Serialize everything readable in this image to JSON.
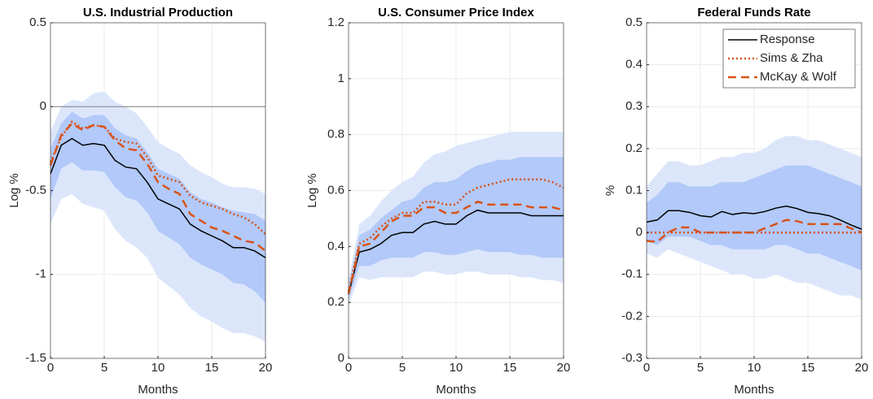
{
  "chart_data": [
    {
      "type": "line",
      "title": "U.S. Industrial Production",
      "xlabel": "Months",
      "ylabel": "Log %",
      "x": [
        0,
        1,
        2,
        3,
        4,
        5,
        6,
        7,
        8,
        9,
        10,
        11,
        12,
        13,
        14,
        15,
        16,
        17,
        18,
        19,
        20
      ],
      "xlim": [
        0,
        20
      ],
      "xticks": [
        0,
        5,
        10,
        15,
        20
      ],
      "ylim": [
        -1.5,
        0.5
      ],
      "yticks": [
        -1.5,
        -1,
        -0.5,
        0,
        0.5
      ],
      "grid": true,
      "zero_line": true,
      "bands": [
        {
          "color": "#dce6fb",
          "upper": [
            -0.15,
            0.0,
            0.04,
            0.03,
            0.08,
            0.09,
            0.03,
            0.0,
            -0.04,
            -0.12,
            -0.21,
            -0.25,
            -0.28,
            -0.35,
            -0.39,
            -0.42,
            -0.46,
            -0.48,
            -0.48,
            -0.49,
            -0.52
          ],
          "lower": [
            -0.7,
            -0.55,
            -0.52,
            -0.58,
            -0.6,
            -0.62,
            -0.73,
            -0.8,
            -0.84,
            -0.9,
            -1.02,
            -1.07,
            -1.12,
            -1.2,
            -1.25,
            -1.28,
            -1.32,
            -1.35,
            -1.35,
            -1.37,
            -1.4
          ]
        },
        {
          "color": "#b2c9f9",
          "upper": [
            -0.25,
            -0.1,
            -0.03,
            -0.07,
            -0.05,
            -0.05,
            -0.13,
            -0.17,
            -0.19,
            -0.27,
            -0.37,
            -0.4,
            -0.43,
            -0.51,
            -0.55,
            -0.57,
            -0.6,
            -0.62,
            -0.63,
            -0.64,
            -0.68
          ],
          "lower": [
            -0.55,
            -0.37,
            -0.33,
            -0.38,
            -0.38,
            -0.39,
            -0.48,
            -0.54,
            -0.56,
            -0.63,
            -0.74,
            -0.78,
            -0.82,
            -0.9,
            -0.94,
            -0.97,
            -1.0,
            -1.05,
            -1.06,
            -1.1,
            -1.17
          ]
        }
      ],
      "series": [
        {
          "name": "Response",
          "color": "#000000",
          "dash": "solid",
          "values": [
            -0.4,
            -0.23,
            -0.19,
            -0.23,
            -0.22,
            -0.23,
            -0.32,
            -0.36,
            -0.37,
            -0.45,
            -0.55,
            -0.58,
            -0.61,
            -0.7,
            -0.74,
            -0.77,
            -0.8,
            -0.84,
            -0.84,
            -0.86,
            -0.9
          ]
        },
        {
          "name": "Sims & Zha",
          "color": "#d95319",
          "dash": "dotted",
          "values": [
            -0.33,
            -0.18,
            -0.09,
            -0.13,
            -0.11,
            -0.12,
            -0.19,
            -0.21,
            -0.22,
            -0.3,
            -0.41,
            -0.43,
            -0.45,
            -0.53,
            -0.57,
            -0.59,
            -0.61,
            -0.64,
            -0.66,
            -0.7,
            -0.76
          ]
        },
        {
          "name": "McKay & Wolf",
          "color": "#d95319",
          "dash": "dashed",
          "values": [
            -0.35,
            -0.17,
            -0.1,
            -0.14,
            -0.11,
            -0.12,
            -0.2,
            -0.25,
            -0.26,
            -0.34,
            -0.45,
            -0.49,
            -0.52,
            -0.64,
            -0.68,
            -0.72,
            -0.74,
            -0.77,
            -0.8,
            -0.81,
            -0.86
          ]
        }
      ]
    },
    {
      "type": "line",
      "title": "U.S. Consumer Price Index",
      "xlabel": "Months",
      "ylabel": "Log %",
      "x": [
        0,
        1,
        2,
        3,
        4,
        5,
        6,
        7,
        8,
        9,
        10,
        11,
        12,
        13,
        14,
        15,
        16,
        17,
        18,
        19,
        20
      ],
      "xlim": [
        0,
        20
      ],
      "xticks": [
        0,
        5,
        10,
        15,
        20
      ],
      "ylim": [
        0,
        1.2
      ],
      "yticks": [
        0,
        0.2,
        0.4,
        0.6,
        0.8,
        1,
        1.2
      ],
      "grid": true,
      "bands": [
        {
          "color": "#dce6fb",
          "upper": [
            0.28,
            0.48,
            0.51,
            0.56,
            0.6,
            0.63,
            0.65,
            0.7,
            0.73,
            0.74,
            0.76,
            0.77,
            0.78,
            0.79,
            0.8,
            0.81,
            0.81,
            0.81,
            0.81,
            0.81,
            0.81
          ],
          "lower": [
            0.19,
            0.29,
            0.28,
            0.29,
            0.29,
            0.29,
            0.29,
            0.31,
            0.31,
            0.3,
            0.3,
            0.31,
            0.31,
            0.3,
            0.3,
            0.3,
            0.29,
            0.29,
            0.28,
            0.28,
            0.27
          ]
        },
        {
          "color": "#b2c9f9",
          "upper": [
            0.26,
            0.44,
            0.46,
            0.5,
            0.53,
            0.56,
            0.57,
            0.61,
            0.63,
            0.63,
            0.64,
            0.67,
            0.69,
            0.7,
            0.71,
            0.71,
            0.72,
            0.72,
            0.72,
            0.72,
            0.72
          ],
          "lower": [
            0.21,
            0.33,
            0.33,
            0.35,
            0.36,
            0.36,
            0.36,
            0.38,
            0.38,
            0.37,
            0.37,
            0.38,
            0.39,
            0.38,
            0.38,
            0.38,
            0.37,
            0.37,
            0.36,
            0.36,
            0.36
          ]
        }
      ],
      "series": [
        {
          "name": "Response",
          "color": "#000000",
          "dash": "solid",
          "values": [
            0.23,
            0.38,
            0.39,
            0.41,
            0.44,
            0.45,
            0.45,
            0.48,
            0.49,
            0.48,
            0.48,
            0.51,
            0.53,
            0.52,
            0.52,
            0.52,
            0.52,
            0.51,
            0.51,
            0.51,
            0.51
          ]
        },
        {
          "name": "Sims & Zha",
          "color": "#d95319",
          "dash": "dotted",
          "values": [
            0.24,
            0.41,
            0.43,
            0.47,
            0.5,
            0.52,
            0.52,
            0.56,
            0.56,
            0.55,
            0.55,
            0.59,
            0.61,
            0.62,
            0.63,
            0.64,
            0.64,
            0.64,
            0.64,
            0.63,
            0.61
          ]
        },
        {
          "name": "McKay & Wolf",
          "color": "#d95319",
          "dash": "dashed",
          "values": [
            0.23,
            0.4,
            0.41,
            0.45,
            0.49,
            0.51,
            0.51,
            0.54,
            0.54,
            0.52,
            0.52,
            0.54,
            0.56,
            0.55,
            0.55,
            0.55,
            0.55,
            0.54,
            0.54,
            0.54,
            0.53
          ]
        }
      ]
    },
    {
      "type": "line",
      "title": "Federal Funds Rate",
      "xlabel": "Months",
      "ylabel": "%",
      "x": [
        0,
        1,
        2,
        3,
        4,
        5,
        6,
        7,
        8,
        9,
        10,
        11,
        12,
        13,
        14,
        15,
        16,
        17,
        18,
        19,
        20
      ],
      "xlim": [
        0,
        20
      ],
      "xticks": [
        0,
        5,
        10,
        15,
        20
      ],
      "ylim": [
        -0.3,
        0.5
      ],
      "yticks": [
        -0.3,
        -0.2,
        -0.1,
        0,
        0.1,
        0.2,
        0.3,
        0.4,
        0.5
      ],
      "grid": true,
      "legend": "northeast",
      "bands": [
        {
          "color": "#dce6fb",
          "upper": [
            0.11,
            0.14,
            0.17,
            0.17,
            0.16,
            0.16,
            0.17,
            0.18,
            0.18,
            0.19,
            0.19,
            0.2,
            0.22,
            0.23,
            0.23,
            0.22,
            0.22,
            0.21,
            0.2,
            0.19,
            0.18
          ],
          "lower": [
            -0.05,
            -0.06,
            -0.04,
            -0.05,
            -0.06,
            -0.07,
            -0.08,
            -0.09,
            -0.1,
            -0.1,
            -0.11,
            -0.11,
            -0.1,
            -0.11,
            -0.12,
            -0.12,
            -0.13,
            -0.14,
            -0.15,
            -0.15,
            -0.16
          ]
        },
        {
          "color": "#b2c9f9",
          "upper": [
            0.07,
            0.09,
            0.12,
            0.12,
            0.11,
            0.11,
            0.11,
            0.12,
            0.12,
            0.12,
            0.13,
            0.14,
            0.15,
            0.16,
            0.16,
            0.16,
            0.15,
            0.14,
            0.13,
            0.12,
            0.11
          ],
          "lower": [
            -0.02,
            -0.03,
            -0.01,
            -0.01,
            -0.01,
            -0.02,
            -0.03,
            -0.03,
            -0.04,
            -0.04,
            -0.04,
            -0.04,
            -0.03,
            -0.03,
            -0.04,
            -0.05,
            -0.05,
            -0.06,
            -0.07,
            -0.08,
            -0.09
          ]
        }
      ],
      "series": [
        {
          "name": "Response",
          "color": "#000000",
          "dash": "solid",
          "values": [
            0.025,
            0.03,
            0.052,
            0.052,
            0.048,
            0.04,
            0.037,
            0.05,
            0.043,
            0.047,
            0.045,
            0.05,
            0.058,
            0.063,
            0.057,
            0.048,
            0.045,
            0.04,
            0.03,
            0.018,
            0.008
          ]
        },
        {
          "name": "Sims & Zha",
          "color": "#d95319",
          "dash": "dotted",
          "values": [
            0,
            0,
            0,
            0,
            0,
            0,
            0,
            0,
            0,
            0,
            0,
            0,
            0,
            0,
            0,
            0,
            0,
            0,
            0,
            0,
            0
          ]
        },
        {
          "name": "McKay & Wolf",
          "color": "#d95319",
          "dash": "dashed",
          "values": [
            -0.02,
            -0.022,
            0,
            0.012,
            0.012,
            0,
            0,
            0,
            0,
            0,
            0,
            0.01,
            0.02,
            0.03,
            0.027,
            0.02,
            0.02,
            0.02,
            0.02,
            0.01,
            0
          ]
        }
      ]
    }
  ]
}
